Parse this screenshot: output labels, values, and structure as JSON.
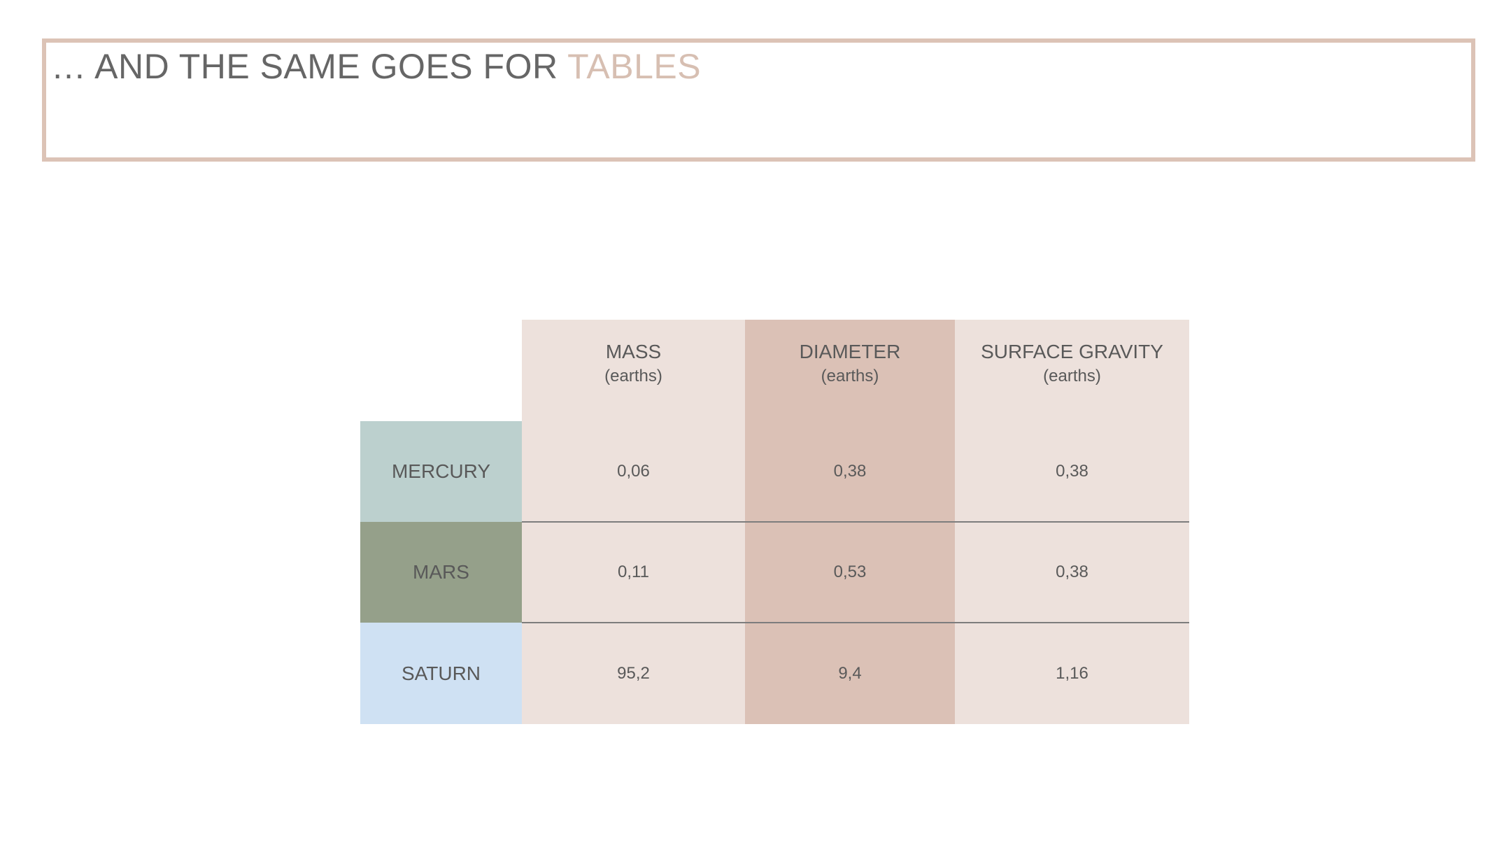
{
  "slide": {
    "title_prefix": "… AND THE SAME GOES FOR ",
    "title_accent": "TABLES"
  },
  "table": {
    "columns": [
      {
        "label": "MASS",
        "unit": "(earths)"
      },
      {
        "label": "DIAMETER",
        "unit": "(earths)"
      },
      {
        "label": "SURFACE GRAVITY",
        "unit": "(earths)"
      }
    ],
    "rows": [
      {
        "label": "MERCURY",
        "color": "#bcd0ce",
        "values": [
          "0,06",
          "0,38",
          "0,38"
        ]
      },
      {
        "label": "MARS",
        "color": "#95a08a",
        "values": [
          "0,11",
          "0,53",
          "0,38"
        ]
      },
      {
        "label": "SATURN",
        "color": "#cfe1f3",
        "values": [
          "95,2",
          "9,4",
          "1,16"
        ]
      }
    ]
  },
  "colors": {
    "accent": "#d7bfb2",
    "border": "#dcc3b6",
    "column_light": "#ede1dc",
    "column_dark": "#dbc1b6"
  }
}
